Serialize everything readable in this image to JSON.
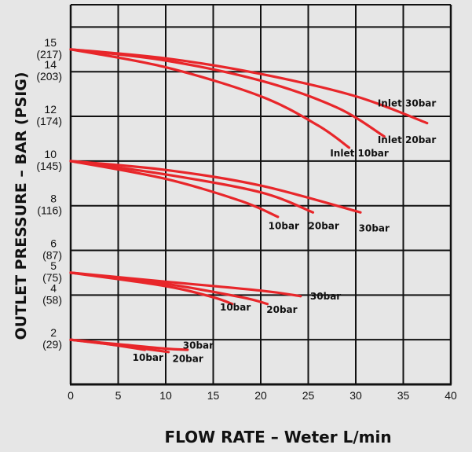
{
  "chart_data": {
    "type": "line",
    "title": "",
    "xlabel": "FLOW RATE – Weter L/min",
    "ylabel": "OUTLET PRESSURE – BAR (PSIG)",
    "xlim": [
      0,
      40
    ],
    "ylim": [
      0,
      17
    ],
    "grid": true,
    "x_ticks": [
      "0",
      "5",
      "10",
      "15",
      "20",
      "25",
      "30",
      "35",
      "40"
    ],
    "y_ticks": [
      {
        "value": 15,
        "bar": "15",
        "psig": "(217)"
      },
      {
        "value": 14,
        "bar": "14",
        "psig": "(203)"
      },
      {
        "value": 12,
        "bar": "12",
        "psig": "(174)"
      },
      {
        "value": 10,
        "bar": "10",
        "psig": "(145)"
      },
      {
        "value": 8,
        "bar": "8",
        "psig": "(116)"
      },
      {
        "value": 6,
        "bar": "6",
        "psig": "(87)"
      },
      {
        "value": 5,
        "bar": "5",
        "psig": "(75)"
      },
      {
        "value": 4,
        "bar": "4",
        "psig": "(58)"
      },
      {
        "value": 2,
        "bar": "2",
        "psig": "(29)"
      }
    ],
    "series_color": "#e8262a",
    "groups": [
      {
        "outlet": 15,
        "series": [
          {
            "label": "Inlet 30bar",
            "x": [
              0,
              10,
              20,
              30,
              37.5
            ],
            "y": [
              15,
              14.6,
              13.9,
              12.9,
              11.7
            ]
          },
          {
            "label": "Inlet 20bar",
            "x": [
              0,
              10,
              20,
              28,
              33
            ],
            "y": [
              15,
              14.5,
              13.6,
              12.4,
              11.1
            ]
          },
          {
            "label": "Inlet 10bar",
            "x": [
              0,
              10,
              20,
              26,
              29.3
            ],
            "y": [
              15,
              14.2,
              12.9,
              11.6,
              10.6
            ]
          }
        ]
      },
      {
        "outlet": 10,
        "series": [
          {
            "label": "30bar",
            "x": [
              0,
              10,
              20,
              30.5
            ],
            "y": [
              10,
              9.6,
              8.9,
              7.7
            ]
          },
          {
            "label": "20bar",
            "x": [
              0,
              10,
              20,
              25.5
            ],
            "y": [
              10,
              9.4,
              8.6,
              7.7
            ]
          },
          {
            "label": "10bar",
            "x": [
              0,
              10,
              18,
              21.8
            ],
            "y": [
              10,
              9.2,
              8.2,
              7.5
            ]
          }
        ]
      },
      {
        "outlet": 5,
        "series": [
          {
            "label": "30bar",
            "x": [
              0,
              10,
              20,
              24.2
            ],
            "y": [
              5,
              4.6,
              4.2,
              3.95
            ]
          },
          {
            "label": "20bar",
            "x": [
              0,
              10,
              18,
              20.7
            ],
            "y": [
              5,
              4.5,
              3.9,
              3.6
            ]
          },
          {
            "label": "10bar",
            "x": [
              0,
              10,
              15,
              17
            ],
            "y": [
              5,
              4.4,
              3.9,
              3.6
            ]
          }
        ]
      },
      {
        "outlet": 2,
        "series": [
          {
            "label": "30bar",
            "x": [
              0,
              5,
              10,
              12.3
            ],
            "y": [
              2,
              1.8,
              1.6,
              1.55
            ]
          },
          {
            "label": "20bar",
            "x": [
              0,
              5,
              10.3
            ],
            "y": [
              2,
              1.75,
              1.45
            ]
          },
          {
            "label": "10bar",
            "x": [
              0,
              4,
              7.8
            ],
            "y": [
              2,
              1.8,
              1.55
            ]
          }
        ]
      }
    ],
    "annotations": [
      {
        "text": "Inlet 30bar",
        "x": 32.3,
        "y": 12.45
      },
      {
        "text": "Inlet 20bar",
        "x": 32.3,
        "y": 10.8
      },
      {
        "text": "Inlet 10bar",
        "x": 27.3,
        "y": 10.2
      },
      {
        "text": "10bar",
        "x": 20.8,
        "y": 6.95
      },
      {
        "text": "20bar",
        "x": 25.0,
        "y": 6.95
      },
      {
        "text": "30bar",
        "x": 30.3,
        "y": 6.85
      },
      {
        "text": "30bar",
        "x": 25.2,
        "y": 3.8
      },
      {
        "text": "10bar",
        "x": 15.7,
        "y": 3.3
      },
      {
        "text": "20bar",
        "x": 20.6,
        "y": 3.2
      },
      {
        "text": "30bar",
        "x": 11.8,
        "y": 1.6
      },
      {
        "text": "10bar",
        "x": 6.5,
        "y": 1.05
      },
      {
        "text": "20bar",
        "x": 10.7,
        "y": 1.0
      }
    ]
  }
}
